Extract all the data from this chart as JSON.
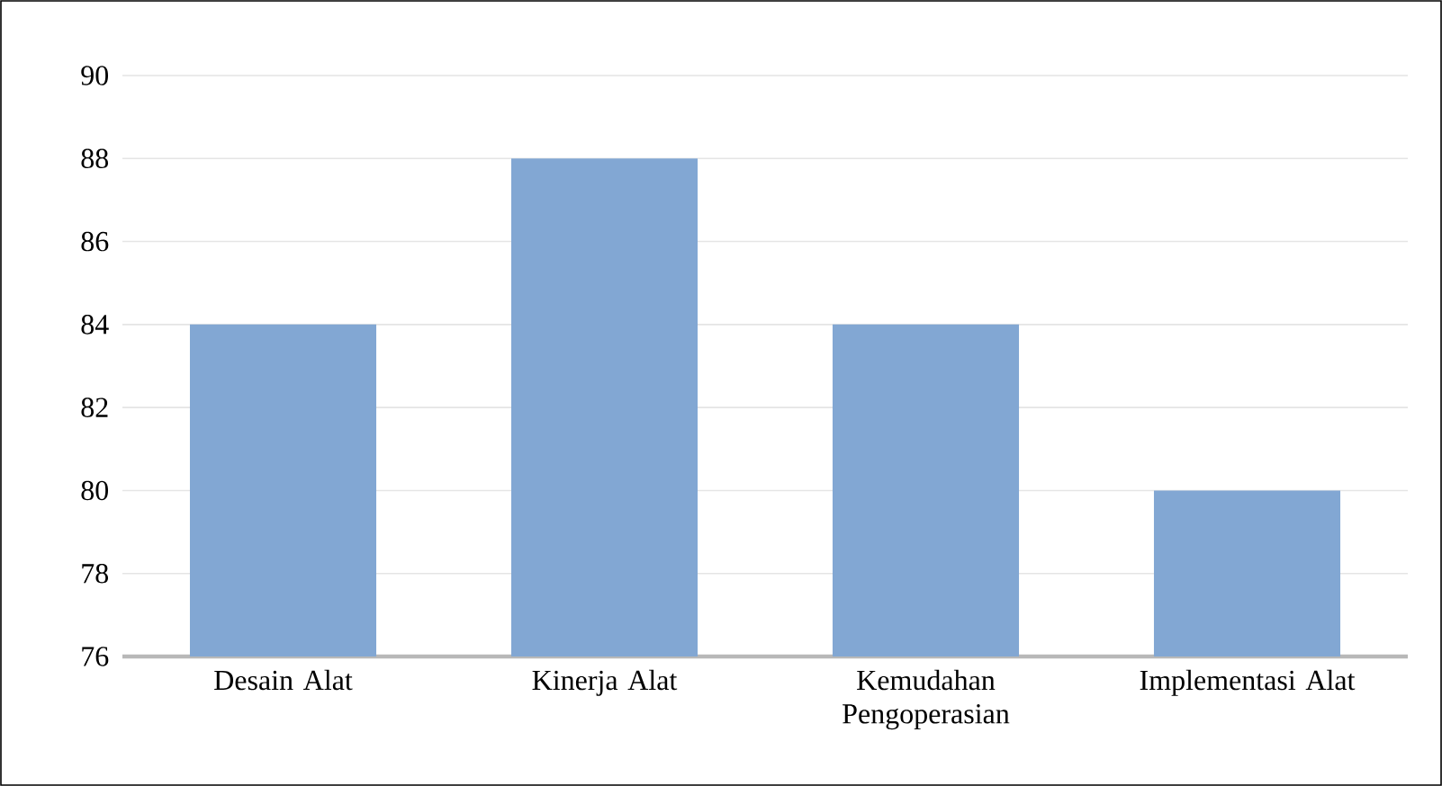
{
  "chart_data": {
    "type": "bar",
    "categories": [
      "Desain Alat",
      "Kinerja Alat",
      "Kemudahan Pengoperasian",
      "Implementasi Alat"
    ],
    "values": [
      84,
      88,
      84,
      80
    ],
    "color": "#82a7d3",
    "ylim": [
      76,
      90
    ],
    "yticks": [
      76,
      78,
      80,
      82,
      84,
      86,
      88,
      90
    ],
    "grid": "y"
  }
}
